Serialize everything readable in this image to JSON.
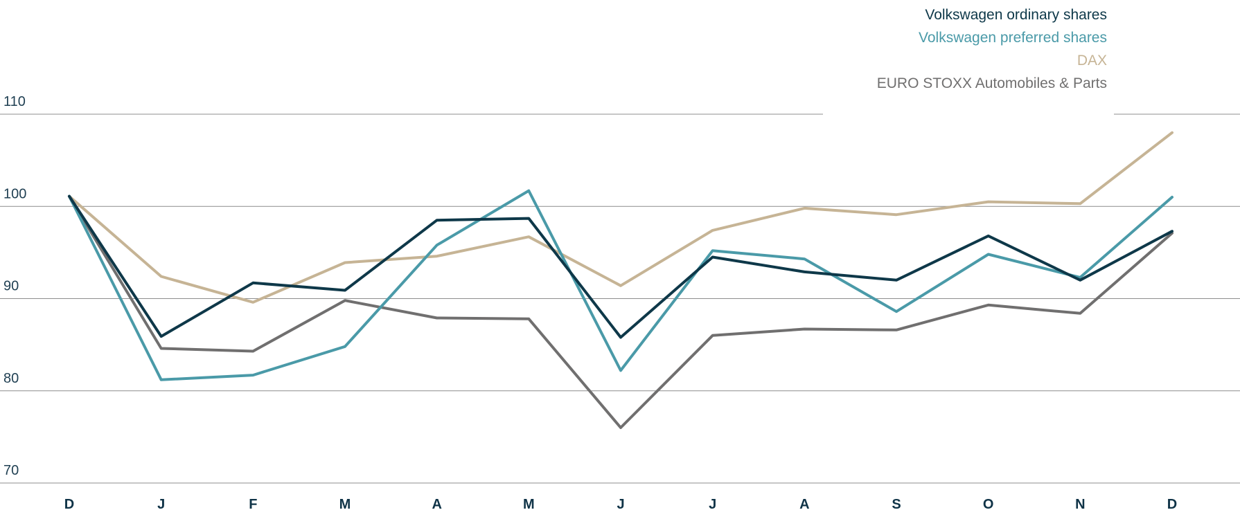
{
  "chart_data": {
    "type": "line",
    "categories": [
      "D",
      "J",
      "F",
      "M",
      "A",
      "M",
      "J",
      "J",
      "A",
      "S",
      "O",
      "N",
      "D"
    ],
    "ylim": [
      70,
      110
    ],
    "yticks": [
      70,
      80,
      90,
      100,
      110
    ],
    "grid": true,
    "legend_position": "top-right",
    "series": [
      {
        "name": "Volkswagen ordinary shares",
        "color": "#0e3849",
        "values": [
          101.1,
          85.9,
          91.7,
          90.9,
          98.5,
          98.7,
          85.8,
          94.5,
          92.9,
          92.0,
          96.8,
          92.0,
          97.3
        ]
      },
      {
        "name": "Volkswagen preferred shares",
        "color": "#4a9aa8",
        "values": [
          101.1,
          81.2,
          81.7,
          84.8,
          95.8,
          101.7,
          82.2,
          95.2,
          94.3,
          88.6,
          94.8,
          92.3,
          101.0
        ]
      },
      {
        "name": "DAX",
        "color": "#c6b495",
        "values": [
          101.1,
          92.4,
          89.6,
          93.9,
          94.6,
          96.7,
          91.4,
          97.4,
          99.8,
          99.1,
          100.5,
          100.3,
          108.0
        ]
      },
      {
        "name": "EURO STOXX Automobiles & Parts",
        "color": "#706f6f",
        "values": [
          101.1,
          84.6,
          84.3,
          89.8,
          87.9,
          87.8,
          76.0,
          86.0,
          86.7,
          86.6,
          89.3,
          88.4,
          97.1
        ]
      }
    ]
  }
}
